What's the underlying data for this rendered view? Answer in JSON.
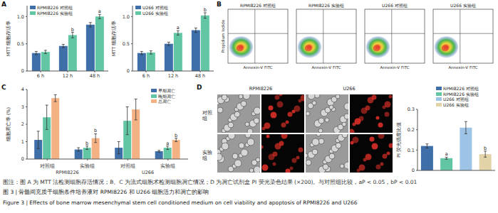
{
  "panels": [
    "A",
    "B",
    "C",
    "D"
  ],
  "chart_data": [
    {
      "type": "bar",
      "categories": [
        "6 h",
        "12 h",
        "48 h"
      ],
      "y_label": "MTT 细胞存活率",
      "ylim": [
        0,
        1.2
      ],
      "yticks": [
        0,
        0.5,
        {
          "value": 1,
          "label": "1.0"
        }
      ],
      "legend": "top left",
      "series": [
        {
          "name": "RPMI8226 对照组",
          "color": "#3f6fa8",
          "values": [
            0.33,
            0.46,
            0.85
          ],
          "errors": [
            0.03,
            0.03,
            0.04
          ]
        },
        {
          "name": "RPMI8226 实验组",
          "color": "#62c6a5",
          "values": [
            0.35,
            0.66,
            1.0
          ],
          "errors": [
            0.03,
            0.05,
            0.04
          ],
          "annotations": [
            null,
            "b",
            "a"
          ]
        }
      ]
    },
    {
      "type": "bar",
      "categories": [
        "6 h",
        "12 h",
        "48 h"
      ],
      "y_label": "MTT 细胞存活率",
      "ylim": [
        0,
        1.2
      ],
      "yticks": [
        0,
        0.5,
        {
          "value": 1,
          "label": "1.0"
        }
      ],
      "legend": "top left",
      "series": [
        {
          "name": "U266 对照组",
          "color": "#3f6fa8",
          "values": [
            0.33,
            0.5,
            0.75
          ],
          "errors": [
            0.03,
            0.03,
            0.04
          ]
        },
        {
          "name": "U266 实验组",
          "color": "#62c6a5",
          "values": [
            0.34,
            0.7,
            1.02
          ],
          "errors": [
            0.03,
            0.04,
            0.05
          ],
          "annotations": [
            null,
            "a",
            "b"
          ]
        }
      ]
    },
    {
      "type": "bar",
      "categories": [
        "对照组",
        "实验组",
        "对照组",
        "实验组"
      ],
      "groups": [
        "RPMI8226",
        "RPMI8226",
        "U266",
        "U266"
      ],
      "y_label": "细胞凋亡率 (%)",
      "ylim": [
        0,
        4
      ],
      "yticks": [
        0,
        1,
        2,
        3,
        4
      ],
      "legend": "top right",
      "series": [
        {
          "name": "早期凋亡",
          "color": "#3f6fa8",
          "values": [
            1.1,
            0.55,
            0.65,
            0.45
          ],
          "errors": [
            0.5,
            0.1,
            0.35,
            0.05
          ]
        },
        {
          "name": "晚期凋亡",
          "color": "#62c6a5",
          "values": [
            2.4,
            0.65,
            2.2,
            0.65
          ],
          "errors": [
            0.7,
            0.1,
            0.8,
            0.1
          ],
          "annotations": [
            null,
            "b",
            null,
            "a"
          ]
        },
        {
          "name": "总凋亡",
          "color": "#f4b183",
          "values": [
            3.5,
            1.2,
            2.85,
            1.1
          ],
          "errors": [
            0.2,
            0.25,
            0.6,
            0.1
          ],
          "annotations": [
            null,
            "b",
            null,
            "b"
          ]
        }
      ]
    },
    {
      "type": "bar",
      "categories": [
        "RPMI8226 对照组",
        "RPMI8226 实验组",
        "U266 对照组",
        "U266 实验组"
      ],
      "values": [
        0.12,
        0.06,
        0.21,
        0.08
      ],
      "errors": [
        0.01,
        0.005,
        0.03,
        0.015
      ],
      "annotations": [
        null,
        "a",
        null,
        "b"
      ],
      "colors": [
        "#3f6fa8",
        "#62c6a5",
        "#9dc3e6",
        "#e2d3a8"
      ],
      "y_label": "PI 荧光强度比值",
      "ylim": [
        0,
        0.3
      ],
      "yticks": [
        0,
        0.1,
        0.2,
        0.3
      ],
      "tick_labels": "y",
      "legend": "top right"
    }
  ],
  "flow_cytometry": {
    "titles": [
      "RPMI8226 对照组",
      "RPMI8226 实验组",
      "U266 对照组",
      "U266 实验组"
    ],
    "x_label": "Annexin-V FITC",
    "y_label": "Propidium Iodide"
  },
  "micrographs": {
    "columns": [
      "RPMI8226",
      "U266"
    ],
    "rows": [
      "对照组",
      "实验组"
    ]
  },
  "caption": {
    "note": "图注：图 A 为 MTT 法检测细胞存活情况；B、C 为流式细胞术检测细胞凋亡情况；D 为凋亡试剂盒 PI 荧光染色结果 (×200)。与对照组比较，aP < 0.05，bP < 0.01",
    "title_cn": "图 3 | 骨髓间充质干细胞条件培养液对 RPMI8226 和 U266 细胞活力和凋亡的影响",
    "title_en": "Figure 3 | Effects of bone marrow mesenchymal stem cell conditioned medium on cell viability and apoptosis of RPMI8226 and U266"
  }
}
